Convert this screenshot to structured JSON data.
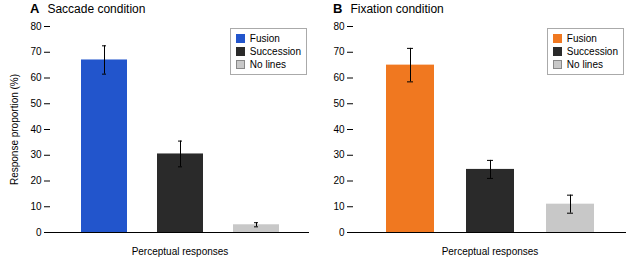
{
  "chart_data": [
    {
      "type": "bar",
      "panel_label": "A",
      "title": "Saccade condition",
      "categories": [
        "Fusion",
        "Succession",
        "No lines"
      ],
      "values": [
        67.0,
        30.5,
        3.0
      ],
      "errors": [
        5.5,
        5.0,
        0.8
      ],
      "colors": [
        "#2255cc",
        "#2a2a2a",
        "#c8c8c8"
      ],
      "xlabel": "Perceptual responses",
      "ylabel": "Response proportion (%)",
      "ylim": [
        0,
        80
      ],
      "yticks": [
        0,
        10,
        20,
        30,
        40,
        50,
        60,
        70,
        80
      ],
      "legend": "upper right",
      "tick_labels": "y"
    },
    {
      "type": "bar",
      "panel_label": "B",
      "title": "Fixation condition",
      "categories": [
        "Fusion",
        "Succession",
        "No lines"
      ],
      "values": [
        65.0,
        24.5,
        11.0
      ],
      "errors": [
        6.5,
        3.5,
        3.5
      ],
      "colors": [
        "#f07820",
        "#2a2a2a",
        "#c8c8c8"
      ],
      "xlabel": "Perceptual responses",
      "ylim": [
        0,
        80
      ],
      "yticks": [
        0,
        10,
        20,
        30,
        40,
        50,
        60,
        70,
        80
      ],
      "legend": "upper right",
      "tick_labels": "y"
    }
  ]
}
